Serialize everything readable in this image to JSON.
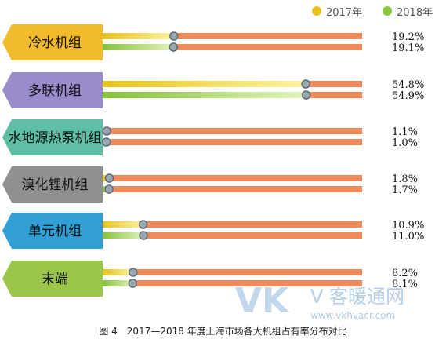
{
  "legend": [
    {
      "label": "2017年",
      "color": "#e8c21c"
    },
    {
      "label": "2018年",
      "color": "#8cc63f"
    }
  ],
  "chart_data": {
    "type": "bar",
    "orientation": "horizontal",
    "categories": [
      "冷水机组",
      "多联机组",
      "水地源热泵机组",
      "溴化锂机组",
      "单元机组",
      "末端"
    ],
    "series": [
      {
        "name": "2017年",
        "values": [
          19.2,
          54.8,
          1.1,
          1.8,
          10.9,
          8.2
        ],
        "labels": [
          "19.2%",
          "54.8%",
          "1.1%",
          "1.8%",
          "10.9%",
          "8.2%"
        ]
      },
      {
        "name": "2018年",
        "values": [
          19.1,
          54.9,
          1.0,
          1.7,
          11.0,
          8.1
        ],
        "labels": [
          "19.1%",
          "54.9%",
          "1.0%",
          "1.7%",
          "11.0%",
          "8.1%"
        ]
      }
    ],
    "xlim": [
      0,
      70
    ],
    "unit": "%",
    "track_color": "#ef8a5c",
    "category_colors": [
      "#f1bb2c",
      "#9a8ccb",
      "#5fbfa6",
      "#8f9091",
      "#2f9fd6",
      "#9bc64a"
    ]
  },
  "watermark": {
    "logo": "VK",
    "text": "V 客暖通网",
    "url": "www.vkhvacr.com"
  },
  "caption": "图 4　2017—2018 年度上海市场各大机组占有率分布对比"
}
